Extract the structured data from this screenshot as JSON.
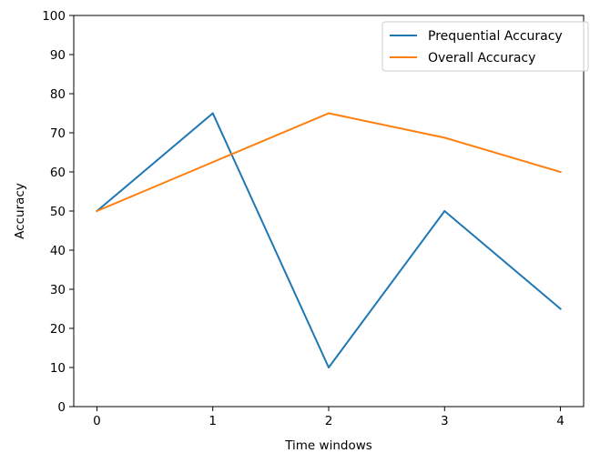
{
  "chart_data": {
    "type": "line",
    "title": "",
    "xlabel": "Time windows",
    "ylabel": "Accuracy",
    "x": [
      0,
      1,
      2,
      3,
      4
    ],
    "xticks": [
      "0",
      "1",
      "2",
      "3",
      "4"
    ],
    "yticks": [
      "0",
      "10",
      "20",
      "30",
      "40",
      "50",
      "60",
      "70",
      "80",
      "90",
      "100"
    ],
    "xlim": [
      -0.2,
      4.2
    ],
    "ylim": [
      0,
      100
    ],
    "grid": false,
    "legend_position": "top-right",
    "series": [
      {
        "name": "Prequential Accuracy",
        "color": "#1f77b4",
        "values": [
          50,
          75,
          10,
          50,
          25
        ]
      },
      {
        "name": "Overall Accuracy",
        "color": "#ff7f0e",
        "values": [
          50,
          62.5,
          75,
          68.75,
          60
        ]
      }
    ]
  }
}
